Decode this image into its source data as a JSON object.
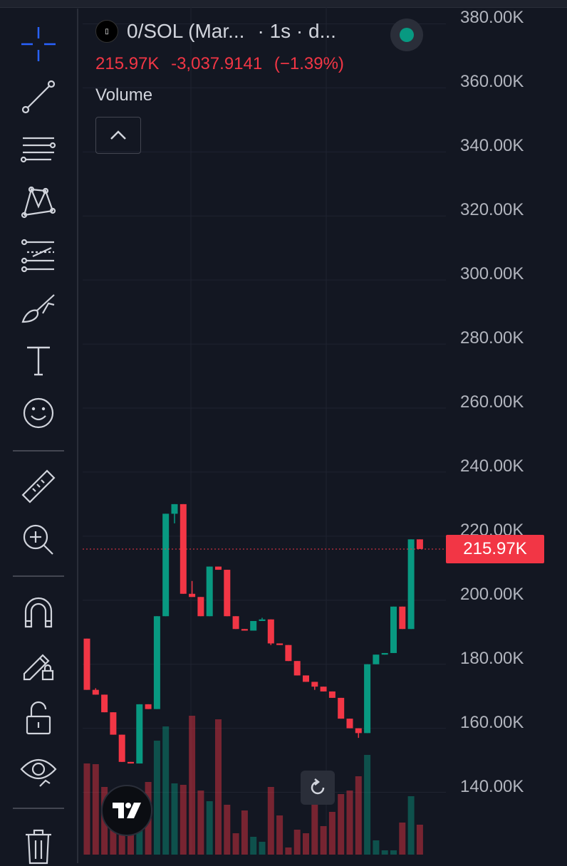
{
  "app": {
    "symbol_title": "0/SOL (Mar...",
    "interval": "· 1s · d...",
    "symbol_logo_text": "▯",
    "status": "market open",
    "status_color": "#089981",
    "ohlc": {
      "last": "215.97K",
      "change": "-3,037.9141",
      "change_pct": "(−1.39%)"
    },
    "indicator_label": "Volume",
    "colors": {
      "up": "#089981",
      "down": "#f23645",
      "background": "#131722",
      "grid": "#1f2330"
    }
  },
  "toolbar": {
    "items": [
      {
        "name": "crosshair-tool",
        "icon": "crosshair-icon",
        "active": true
      },
      {
        "name": "trendline-tool",
        "icon": "trendline-icon"
      },
      {
        "name": "horizontal-lines-tool",
        "icon": "lines-icon"
      },
      {
        "name": "pattern-tool",
        "icon": "pattern-icon"
      },
      {
        "name": "prediction-tool",
        "icon": "forecast-icon"
      },
      {
        "name": "brush-tool",
        "icon": "brush-icon"
      },
      {
        "name": "text-tool",
        "icon": "text-icon"
      },
      {
        "name": "emoji-tool",
        "icon": "emoji-icon"
      },
      {
        "name": "ruler-tool",
        "icon": "ruler-icon"
      },
      {
        "name": "zoom-tool",
        "icon": "zoom-in-icon"
      },
      {
        "name": "magnet-tool",
        "icon": "magnet-icon"
      },
      {
        "name": "lock-drawing-tool",
        "icon": "pencil-lock-icon"
      },
      {
        "name": "lock-all-tool",
        "icon": "lock-open-icon"
      },
      {
        "name": "hide-tool",
        "icon": "eye-icon"
      },
      {
        "name": "delete-tool",
        "icon": "trash-icon"
      }
    ]
  },
  "price_axis": {
    "labels": [
      "380.00K",
      "360.00K",
      "340.00K",
      "320.00K",
      "300.00K",
      "280.00K",
      "260.00K",
      "240.00K",
      "220.00K",
      "200.00K",
      "180.00K",
      "160.00K",
      "140.00K"
    ],
    "current_price_label": "215.97K",
    "current_price": 215970
  },
  "chart_data": {
    "type": "candlestick",
    "ylim": [
      133000,
      383000
    ],
    "current_price": 215970,
    "candles": [
      {
        "o": 188000,
        "h": 188000,
        "c": 172000,
        "l": 172000
      },
      {
        "o": 172000,
        "h": 172500,
        "c": 170500,
        "l": 170500
      },
      {
        "o": 170500,
        "h": 170500,
        "c": 165000,
        "l": 165000
      },
      {
        "o": 165000,
        "h": 165000,
        "c": 158000,
        "l": 158000
      },
      {
        "o": 158000,
        "h": 158000,
        "c": 149500,
        "l": 149500
      },
      {
        "o": 149500,
        "h": 149500,
        "c": 149000,
        "l": 149000
      },
      {
        "o": 149000,
        "h": 167500,
        "c": 167500,
        "l": 149000
      },
      {
        "o": 167500,
        "h": 167500,
        "c": 166000,
        "l": 166000
      },
      {
        "o": 166000,
        "h": 195000,
        "c": 195000,
        "l": 166000
      },
      {
        "o": 195000,
        "h": 227000,
        "c": 227000,
        "l": 195000
      },
      {
        "o": 227000,
        "h": 230000,
        "c": 230000,
        "l": 224000
      },
      {
        "o": 230000,
        "h": 230000,
        "c": 202000,
        "l": 202000
      },
      {
        "o": 202000,
        "h": 206000,
        "c": 201000,
        "l": 201000
      },
      {
        "o": 201000,
        "h": 201000,
        "c": 195000,
        "l": 195000
      },
      {
        "o": 195000,
        "h": 210500,
        "c": 210500,
        "l": 195000
      },
      {
        "o": 210500,
        "h": 210500,
        "c": 209500,
        "l": 209500
      },
      {
        "o": 209500,
        "h": 209500,
        "c": 195000,
        "l": 195000
      },
      {
        "o": 195000,
        "h": 195000,
        "c": 191000,
        "l": 191000
      },
      {
        "o": 191000,
        "h": 191000,
        "c": 190500,
        "l": 190500
      },
      {
        "o": 190500,
        "h": 193500,
        "c": 193500,
        "l": 190500
      },
      {
        "o": 193500,
        "h": 194500,
        "c": 194000,
        "l": 194000
      },
      {
        "o": 194000,
        "h": 194000,
        "c": 186500,
        "l": 186000
      },
      {
        "o": 186500,
        "h": 186500,
        "c": 186000,
        "l": 186000
      },
      {
        "o": 186000,
        "h": 186000,
        "c": 181000,
        "l": 181000
      },
      {
        "o": 181000,
        "h": 181000,
        "c": 176500,
        "l": 176500
      },
      {
        "o": 176500,
        "h": 176500,
        "c": 174500,
        "l": 174500
      },
      {
        "o": 174500,
        "h": 174500,
        "c": 173000,
        "l": 172000
      },
      {
        "o": 173000,
        "h": 173000,
        "c": 171500,
        "l": 171500
      },
      {
        "o": 171500,
        "h": 171500,
        "c": 169500,
        "l": 169500
      },
      {
        "o": 169500,
        "h": 169500,
        "c": 163000,
        "l": 163000
      },
      {
        "o": 163000,
        "h": 163000,
        "c": 160000,
        "l": 160000
      },
      {
        "o": 160000,
        "h": 160000,
        "c": 158500,
        "l": 157000
      },
      {
        "o": 158500,
        "h": 180000,
        "c": 180000,
        "l": 158500
      },
      {
        "o": 180000,
        "h": 183000,
        "c": 183000,
        "l": 180000
      },
      {
        "o": 183000,
        "h": 183500,
        "c": 183500,
        "l": 183000
      },
      {
        "o": 183500,
        "h": 198000,
        "c": 198000,
        "l": 183500
      },
      {
        "o": 198000,
        "h": 198000,
        "c": 191000,
        "l": 191000
      },
      {
        "o": 191000,
        "h": 219000,
        "c": 219000,
        "l": 191000
      },
      {
        "o": 219000,
        "h": 219000,
        "c": 216000,
        "l": 216000
      }
    ],
    "volume": [
      128,
      127,
      95,
      73,
      58,
      55,
      75,
      102,
      160,
      180,
      100,
      98,
      195,
      90,
      75,
      190,
      70,
      30,
      62,
      25,
      18,
      95,
      55,
      10,
      35,
      30,
      78,
      40,
      60,
      85,
      90,
      110,
      140,
      20,
      6,
      6,
      45,
      82,
      42
    ]
  }
}
